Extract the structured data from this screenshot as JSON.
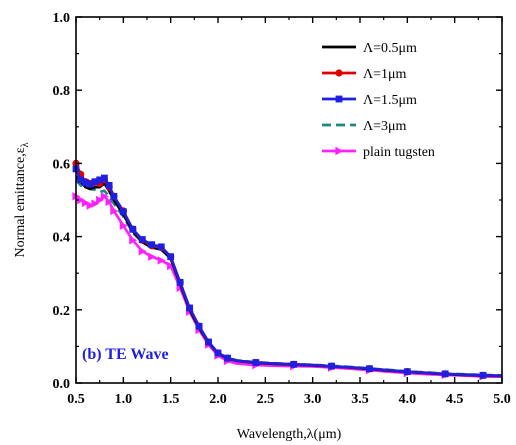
{
  "chart_data": {
    "type": "line",
    "xlabel": "Wavelength,λ(μm)",
    "ylabel": "Normal emittance,ε",
    "ylabel_sub": "λ",
    "xlim": [
      0.5,
      5.0
    ],
    "ylim": [
      0.0,
      1.0
    ],
    "x_ticks": [
      "0.5",
      "1.0",
      "1.5",
      "2.0",
      "2.5",
      "3.0",
      "3.5",
      "4.0",
      "4.5",
      "5.0"
    ],
    "y_ticks": [
      "0.0",
      "0.2",
      "0.4",
      "0.6",
      "0.8",
      "1.0"
    ],
    "grid": false,
    "legend": "top-right",
    "annotation": "(b) TE Wave",
    "annotation_color": "#1f1fe0",
    "series": [
      {
        "name": "Λ=0.5μm",
        "color": "#000000",
        "line": "solid",
        "marker": "none",
        "x": [
          0.5,
          0.55,
          0.6,
          0.65,
          0.7,
          0.75,
          0.8,
          0.85,
          0.9,
          1.0,
          1.1,
          1.2,
          1.3,
          1.4,
          1.5,
          1.6,
          1.7,
          1.8,
          1.9,
          2.0,
          2.1,
          2.2,
          2.4,
          2.6,
          2.8,
          3.0,
          3.2,
          3.4,
          3.6,
          3.8,
          4.0,
          4.2,
          4.4,
          4.6,
          4.8,
          5.0
        ],
        "y": [
          0.565,
          0.55,
          0.535,
          0.53,
          0.535,
          0.535,
          0.545,
          0.525,
          0.5,
          0.46,
          0.415,
          0.385,
          0.37,
          0.365,
          0.34,
          0.27,
          0.2,
          0.15,
          0.11,
          0.08,
          0.067,
          0.06,
          0.055,
          0.052,
          0.05,
          0.048,
          0.045,
          0.042,
          0.038,
          0.034,
          0.03,
          0.027,
          0.024,
          0.022,
          0.02,
          0.019
        ]
      },
      {
        "name": "Λ=1μm",
        "color": "#e00000",
        "line": "solid",
        "marker": "circle",
        "x": [
          0.5,
          0.55,
          0.6,
          0.65,
          0.7,
          0.75,
          0.8,
          0.85,
          0.9,
          1.0,
          1.1,
          1.2,
          1.3,
          1.4,
          1.5,
          1.6,
          1.7,
          1.8,
          1.9,
          2.0,
          2.1,
          2.2,
          2.4,
          2.6,
          2.8,
          3.0,
          3.2,
          3.4,
          3.6,
          3.8,
          4.0,
          4.2,
          4.4,
          4.6,
          4.8,
          5.0
        ],
        "y": [
          0.6,
          0.57,
          0.55,
          0.545,
          0.548,
          0.545,
          0.555,
          0.535,
          0.51,
          0.47,
          0.42,
          0.39,
          0.375,
          0.37,
          0.345,
          0.275,
          0.205,
          0.155,
          0.112,
          0.082,
          0.068,
          0.061,
          0.056,
          0.053,
          0.051,
          0.049,
          0.046,
          0.043,
          0.039,
          0.035,
          0.031,
          0.028,
          0.025,
          0.023,
          0.021,
          0.02
        ]
      },
      {
        "name": "Λ=1.5μm",
        "color": "#1f1fe0",
        "line": "solid",
        "marker": "square",
        "x": [
          0.5,
          0.55,
          0.6,
          0.65,
          0.7,
          0.75,
          0.8,
          0.85,
          0.9,
          1.0,
          1.1,
          1.2,
          1.3,
          1.4,
          1.5,
          1.6,
          1.7,
          1.8,
          1.9,
          2.0,
          2.1,
          2.2,
          2.4,
          2.6,
          2.8,
          3.0,
          3.2,
          3.4,
          3.6,
          3.8,
          4.0,
          4.2,
          4.4,
          4.6,
          4.8,
          5.0
        ],
        "y": [
          0.585,
          0.555,
          0.548,
          0.543,
          0.55,
          0.555,
          0.56,
          0.54,
          0.51,
          0.468,
          0.42,
          0.392,
          0.378,
          0.372,
          0.345,
          0.275,
          0.205,
          0.155,
          0.112,
          0.082,
          0.068,
          0.061,
          0.056,
          0.053,
          0.051,
          0.049,
          0.046,
          0.043,
          0.039,
          0.035,
          0.031,
          0.028,
          0.025,
          0.023,
          0.021,
          0.02
        ]
      },
      {
        "name": "Λ=3μm",
        "color": "#1a8a80",
        "line": "dashed",
        "marker": "none",
        "x": [
          0.5,
          0.55,
          0.6,
          0.65,
          0.7,
          0.75,
          0.8,
          0.85,
          0.9,
          1.0,
          1.1,
          1.2,
          1.3,
          1.4,
          1.5,
          1.6,
          1.7,
          1.8,
          1.9,
          2.0,
          2.1,
          2.2,
          2.4,
          2.6,
          2.8,
          3.0,
          3.2,
          3.4,
          3.6,
          3.8,
          4.0,
          4.2,
          4.4,
          4.6,
          4.8,
          5.0
        ],
        "y": [
          0.555,
          0.54,
          0.535,
          0.53,
          0.528,
          0.522,
          0.525,
          0.51,
          0.49,
          0.455,
          0.41,
          0.385,
          0.37,
          0.365,
          0.34,
          0.272,
          0.205,
          0.155,
          0.112,
          0.082,
          0.069,
          0.062,
          0.057,
          0.054,
          0.052,
          0.05,
          0.047,
          0.044,
          0.04,
          0.036,
          0.032,
          0.029,
          0.026,
          0.024,
          0.022,
          0.021
        ]
      },
      {
        "name": "plain tugsten",
        "color": "#ff20ff",
        "line": "solid",
        "marker": "triangle-right",
        "x": [
          0.5,
          0.55,
          0.6,
          0.65,
          0.7,
          0.75,
          0.8,
          0.85,
          0.9,
          1.0,
          1.1,
          1.2,
          1.3,
          1.4,
          1.5,
          1.6,
          1.7,
          1.8,
          1.9,
          2.0,
          2.1,
          2.2,
          2.4,
          2.6,
          2.8,
          3.0,
          3.2,
          3.4,
          3.6,
          3.8,
          4.0,
          4.2,
          4.4,
          4.6,
          4.8,
          5.0
        ],
        "y": [
          0.51,
          0.5,
          0.492,
          0.485,
          0.49,
          0.5,
          0.51,
          0.495,
          0.47,
          0.43,
          0.39,
          0.36,
          0.345,
          0.335,
          0.32,
          0.26,
          0.195,
          0.145,
          0.105,
          0.075,
          0.06,
          0.053,
          0.049,
          0.047,
          0.046,
          0.045,
          0.042,
          0.039,
          0.035,
          0.031,
          0.027,
          0.024,
          0.022,
          0.02,
          0.018,
          0.017
        ]
      }
    ]
  }
}
